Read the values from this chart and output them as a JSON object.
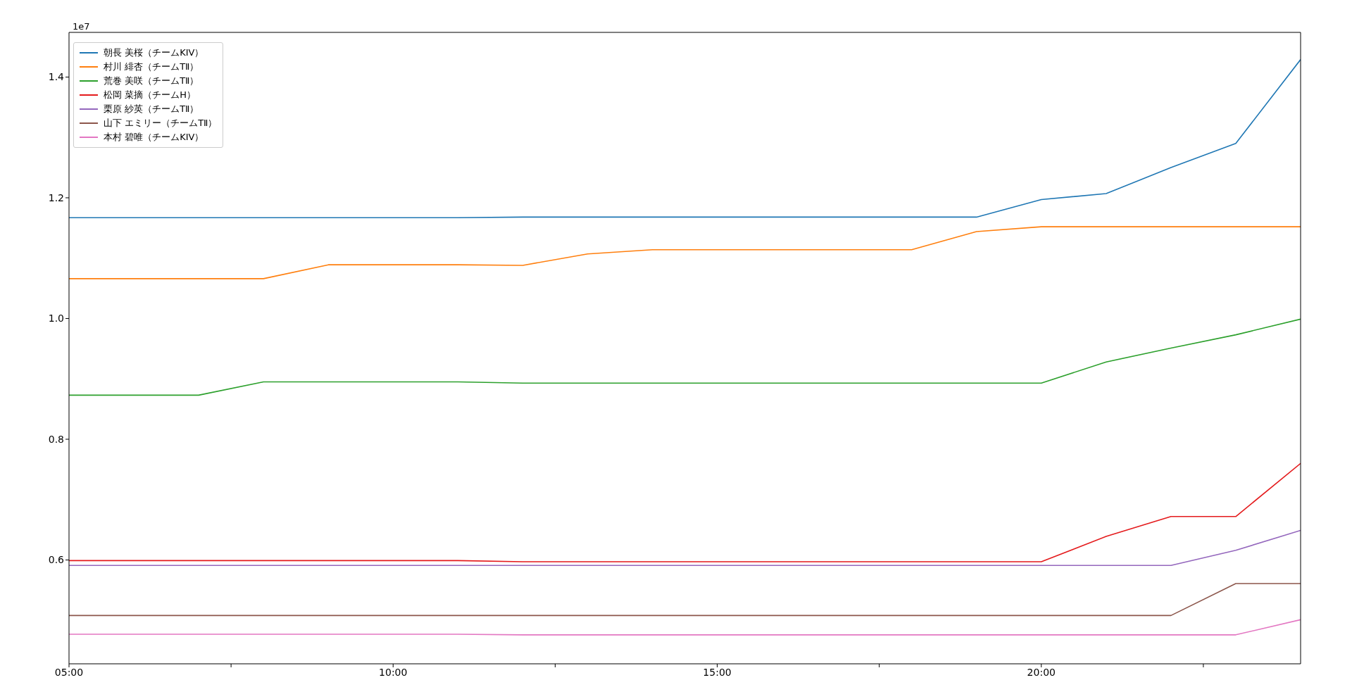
{
  "chart_data": {
    "type": "line",
    "x": [
      5,
      6,
      7,
      8,
      9,
      10,
      11,
      12,
      13,
      14,
      15,
      16,
      17,
      18,
      19,
      20,
      21,
      22,
      23,
      24
    ],
    "xlim": [
      5,
      24
    ],
    "xticks": [
      {
        "value": 5,
        "label": "05:00"
      },
      {
        "value": 7.5,
        "label": null
      },
      {
        "value": 10,
        "label": "10:00"
      },
      {
        "value": 12.5,
        "label": null
      },
      {
        "value": 15,
        "label": "15:00"
      },
      {
        "value": 17.5,
        "label": null
      },
      {
        "value": 20,
        "label": "20:00"
      },
      {
        "value": 22.5,
        "label": null
      }
    ],
    "ylim": [
      0.428,
      1.474
    ],
    "yticks": [
      0.6,
      0.8,
      {
        "value": 1,
        "label": "1.0"
      },
      1.2,
      1.4
    ],
    "annotations": [
      "1e7"
    ],
    "legend": "top left",
    "grid": false,
    "marker": "none",
    "line_style": "solid",
    "series": [
      {
        "name": "朝長 美桜（チームKIV）",
        "color": "#1f77b4",
        "values": [
          1.167,
          1.167,
          1.167,
          1.167,
          1.167,
          1.167,
          1.167,
          1.168,
          1.168,
          1.168,
          1.168,
          1.168,
          1.168,
          1.168,
          1.168,
          1.197,
          1.207,
          1.25,
          1.29,
          1.429
        ]
      },
      {
        "name": "村川 緋杏（チームTⅡ）",
        "color": "#ff7f0e",
        "values": [
          1.066,
          1.066,
          1.066,
          1.066,
          1.089,
          1.089,
          1.089,
          1.088,
          1.107,
          1.114,
          1.114,
          1.114,
          1.114,
          1.114,
          1.144,
          1.152,
          1.152,
          1.152,
          1.152,
          1.152
        ]
      },
      {
        "name": "荒巻 美咲（チームTⅡ）",
        "color": "#2ca02c",
        "values": [
          0.873,
          0.873,
          0.873,
          0.895,
          0.895,
          0.895,
          0.895,
          0.893,
          0.893,
          0.893,
          0.893,
          0.893,
          0.893,
          0.893,
          0.893,
          0.893,
          0.928,
          0.951,
          0.973,
          0.999
        ]
      },
      {
        "name": "松岡 菜摘（チームH）",
        "color": "#e41a1c",
        "values": [
          0.599,
          0.599,
          0.599,
          0.599,
          0.599,
          0.599,
          0.599,
          0.597,
          0.597,
          0.597,
          0.597,
          0.597,
          0.597,
          0.597,
          0.597,
          0.597,
          0.639,
          0.672,
          0.672,
          0.76
        ]
      },
      {
        "name": "栗原 紗英（チームTⅡ）",
        "color": "#9467bd",
        "values": [
          0.591,
          0.591,
          0.591,
          0.591,
          0.591,
          0.591,
          0.591,
          0.591,
          0.591,
          0.591,
          0.591,
          0.591,
          0.591,
          0.591,
          0.591,
          0.591,
          0.591,
          0.591,
          0.616,
          0.649
        ]
      },
      {
        "name": "山下 エミリー（チームTⅡ）",
        "color": "#8c564b",
        "values": [
          0.508,
          0.508,
          0.508,
          0.508,
          0.508,
          0.508,
          0.508,
          0.508,
          0.508,
          0.508,
          0.508,
          0.508,
          0.508,
          0.508,
          0.508,
          0.508,
          0.508,
          0.508,
          0.561,
          0.561
        ]
      },
      {
        "name": "本村 碧唯（チームKIV）",
        "color": "#e377c2",
        "values": [
          0.477,
          0.477,
          0.477,
          0.477,
          0.477,
          0.477,
          0.477,
          0.476,
          0.476,
          0.476,
          0.476,
          0.476,
          0.476,
          0.476,
          0.476,
          0.476,
          0.476,
          0.476,
          0.476,
          0.501
        ]
      }
    ]
  }
}
